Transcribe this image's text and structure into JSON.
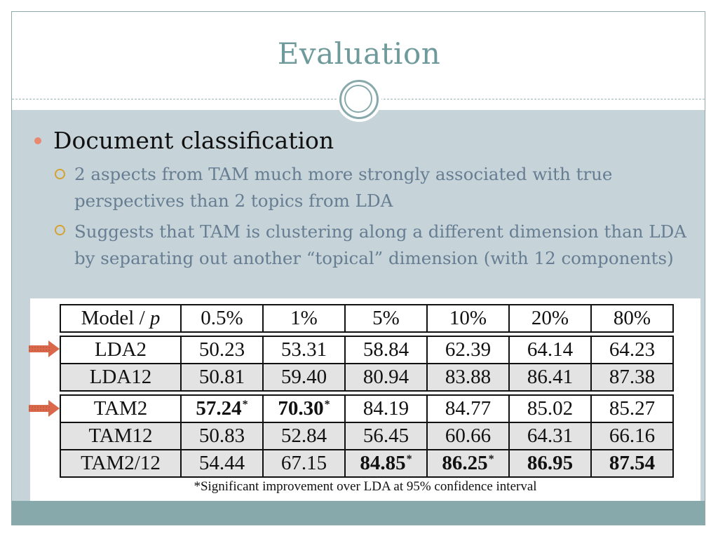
{
  "slide": {
    "title": "Evaluation",
    "bullet": "Document classification",
    "subbullets": [
      "2 aspects from TAM much more strongly associated with true perspectives than 2 topics from LDA",
      "Suggests that TAM is clustering along a different dimension than LDA by separating out another “topical” dimension (with 12 components)"
    ]
  },
  "table": {
    "header": [
      "Model / p",
      "0.5%",
      "1%",
      "5%",
      "10%",
      "20%",
      "80%"
    ],
    "lda_rows": [
      {
        "model": "LDA2",
        "cells": [
          "50.23",
          "53.31",
          "58.84",
          "62.39",
          "64.14",
          "64.23"
        ],
        "highlight": true
      },
      {
        "model": "LDA12",
        "cells": [
          "50.81",
          "59.40",
          "80.94",
          "83.88",
          "86.41",
          "87.38"
        ]
      }
    ],
    "tam_rows": [
      {
        "model": "TAM2",
        "cells": [
          "57.24",
          "70.30",
          "84.19",
          "84.77",
          "85.02",
          "85.27"
        ],
        "highlight": true
      },
      {
        "model": "TAM12",
        "cells": [
          "50.83",
          "52.84",
          "56.45",
          "60.66",
          "64.31",
          "66.16"
        ]
      },
      {
        "model": "TAM2/12",
        "cells": [
          "54.44",
          "67.15",
          "84.85",
          "86.25",
          "86.95",
          "87.54"
        ]
      }
    ],
    "star": "*",
    "footnote": "*Significant improvement over LDA at 95% confidence interval"
  },
  "colors": {
    "title": "#6f9a9b",
    "content_bg": "#c6d3d8",
    "footer_bar": "#87a9ab",
    "bullet_dot": "#e8886e",
    "sub_marker": "#d4a232",
    "sub_text": "#667d92",
    "arrow": "#d9694a"
  }
}
